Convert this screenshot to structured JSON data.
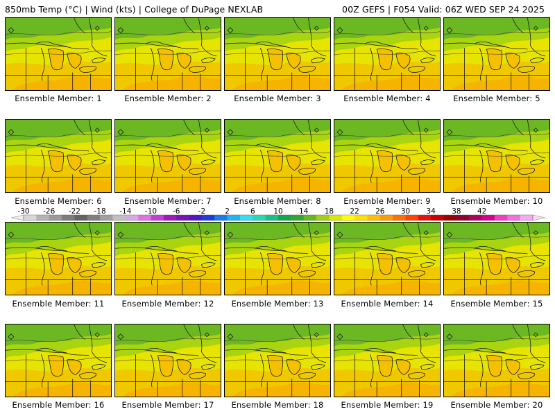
{
  "header": {
    "left": "850mb Temp (°C) | Wind (kts) | College of DuPage NEXLAB",
    "right": "00Z GEFS | F054 Valid: 06Z WED SEP 24 2025"
  },
  "panels": [
    {
      "label": "Ensemble Member: 1"
    },
    {
      "label": "Ensemble Member: 2"
    },
    {
      "label": "Ensemble Member: 3"
    },
    {
      "label": "Ensemble Member: 4"
    },
    {
      "label": "Ensemble Member: 5"
    },
    {
      "label": "Ensemble Member: 6"
    },
    {
      "label": "Ensemble Member: 7"
    },
    {
      "label": "Ensemble Member: 8"
    },
    {
      "label": "Ensemble Member: 9"
    },
    {
      "label": "Ensemble Member: 10"
    },
    {
      "label": "Ensemble Member: 11"
    },
    {
      "label": "Ensemble Member: 12"
    },
    {
      "label": "Ensemble Member: 13"
    },
    {
      "label": "Ensemble Member: 14"
    },
    {
      "label": "Ensemble Member: 15"
    },
    {
      "label": "Ensemble Member: 16"
    },
    {
      "label": "Ensemble Member: 17"
    },
    {
      "label": "Ensemble Member: 18"
    },
    {
      "label": "Ensemble Member: 19"
    },
    {
      "label": "Ensemble Member: 20"
    }
  ],
  "colorbar": {
    "labels": [
      "-30",
      "-26",
      "-22",
      "-18",
      "-14",
      "-10",
      "-6",
      "-2",
      "2",
      "6",
      "10",
      "14",
      "18",
      "22",
      "26",
      "30",
      "34",
      "38",
      "42"
    ],
    "colors": [
      "#d8d8d8",
      "#b4b4b4",
      "#9a9a9a",
      "#7c7c7c",
      "#646464",
      "#808080",
      "#a0a0a0",
      "#c0c0c0",
      "#d6a8e6",
      "#e070e6",
      "#c83cd8",
      "#a018c0",
      "#7814b4",
      "#5018c8",
      "#1e3cdc",
      "#1e78f0",
      "#20b4f0",
      "#30e0f0",
      "#28d8b4",
      "#18c088",
      "#10a848",
      "#30a830",
      "#64b820",
      "#a0d010",
      "#d8e800",
      "#ffff00",
      "#ffe000",
      "#ffc000",
      "#ff9c00",
      "#ff7000",
      "#ff4400",
      "#e81010",
      "#c80000",
      "#a00000",
      "#900030",
      "#b00060",
      "#d80090",
      "#f040c0",
      "#f070e0",
      "#f8a8f0"
    ]
  }
}
